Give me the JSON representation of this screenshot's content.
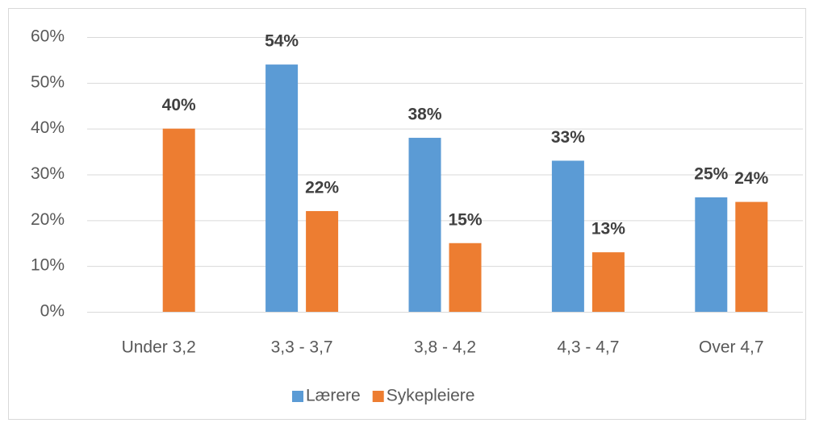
{
  "chart_data": {
    "type": "bar",
    "categories": [
      "Under 3,2",
      "3,3 - 3,7",
      "3,8 - 4,2",
      "4,3 - 4,7",
      "Over 4,7"
    ],
    "series": [
      {
        "name": "Lærere",
        "color": "#5b9bd5",
        "values": [
          null,
          54,
          38,
          33,
          25
        ],
        "value_labels": [
          null,
          "54%",
          "38%",
          "33%",
          "25%"
        ]
      },
      {
        "name": "Sykepleiere",
        "color": "#ed7d31",
        "values": [
          40,
          22,
          15,
          13,
          24
        ],
        "value_labels": [
          "40%",
          "22%",
          "15%",
          "13%",
          "24%"
        ]
      }
    ],
    "ylim": [
      0,
      60
    ],
    "yticks": [
      {
        "value": 0,
        "label": "0%"
      },
      {
        "value": 10,
        "label": "10%"
      },
      {
        "value": 20,
        "label": "20%"
      },
      {
        "value": 30,
        "label": "30%"
      },
      {
        "value": 40,
        "label": "40%"
      },
      {
        "value": 50,
        "label": "50%"
      },
      {
        "value": 60,
        "label": "60%"
      }
    ],
    "grid": true,
    "legend": "bottom"
  }
}
